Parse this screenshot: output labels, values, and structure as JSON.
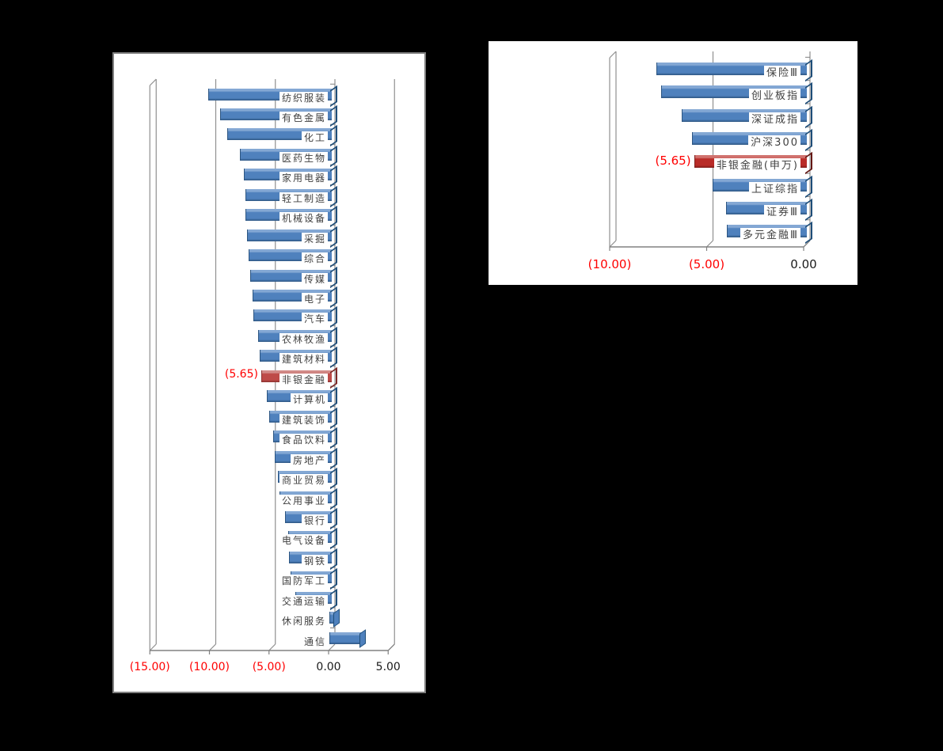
{
  "style": {
    "background": "#000000",
    "panel_background": "#ffffff",
    "panel_border": "#7f7f7f",
    "grid_color": "#8f8f8f",
    "axis_line_color": "#808080",
    "category_text_color": "#404040",
    "axis_text_color": "#1a1a1a",
    "negative_text_color": "#ff0000",
    "blue": {
      "main": "#4f81bd",
      "light": "#84a8d4",
      "dark": "#2c5581",
      "edge": "#1f4e79"
    },
    "red_left": {
      "main": "#be4b48",
      "light": "#d28b88",
      "dark": "#8c3230",
      "edge": "#7b2927"
    },
    "red_right": {
      "main": "#b92c28",
      "light": "#d0726e",
      "dark": "#7e1d1a",
      "edge": "#641713"
    }
  },
  "chart_data": [
    {
      "type": "bar",
      "orientation": "horizontal",
      "title": "",
      "xlabel": "",
      "ylabel": "",
      "grid": true,
      "legend": false,
      "xlim": [
        -15,
        5
      ],
      "categories": [
        "纺织服装",
        "有色金属",
        "化工",
        "医药生物",
        "家用电器",
        "轻工制造",
        "机械设备",
        "采掘",
        "综合",
        "传媒",
        "电子",
        "汽车",
        "农林牧渔",
        "建筑材料",
        "非银金融",
        "计算机",
        "建筑装饰",
        "食品饮料",
        "房地产",
        "商业贸易",
        "公用事业",
        "银行",
        "电气设备",
        "钢铁",
        "国防军工",
        "交通运输",
        "休闲服务",
        "通信"
      ],
      "values": [
        -10.1,
        -9.1,
        -8.5,
        -7.45,
        -7.1,
        -7.0,
        -6.95,
        -6.85,
        -6.7,
        -6.55,
        -6.4,
        -6.3,
        -5.9,
        -5.8,
        -5.65,
        -5.2,
        -5.0,
        -4.65,
        -4.5,
        -4.25,
        -4.15,
        -3.65,
        -3.4,
        -3.3,
        -3.2,
        -2.8,
        0.35,
        2.5
      ],
      "highlight_index": 14,
      "highlight_color_key": "red_left",
      "data_labels": {
        "14": "(5.65)"
      },
      "x_ticks": [
        {
          "label": "(15.00)",
          "value": -15
        },
        {
          "label": "(10.00)",
          "value": -10
        },
        {
          "label": "(5.00)",
          "value": -5
        },
        {
          "label": "0.00",
          "value": 0
        },
        {
          "label": "5.00",
          "value": 5
        }
      ]
    },
    {
      "type": "bar",
      "orientation": "horizontal",
      "title": "",
      "xlabel": "",
      "ylabel": "",
      "grid": true,
      "legend": false,
      "xlim": [
        -10,
        0
      ],
      "categories": [
        "保险Ⅲ",
        "创业板指",
        "深证成指",
        "沪深300",
        "非银金融(申万)",
        "上证综指",
        "证券Ⅲ",
        "多元金融Ⅲ"
      ],
      "values": [
        -7.6,
        -7.35,
        -6.3,
        -5.75,
        -5.65,
        -4.7,
        -4.0,
        -3.95
      ],
      "highlight_index": 4,
      "highlight_color_key": "red_right",
      "data_labels": {
        "4": "(5.65)"
      },
      "x_ticks": [
        {
          "label": "(10.00)",
          "value": -10
        },
        {
          "label": "(5.00)",
          "value": -5
        },
        {
          "label": "0.00",
          "value": 0
        }
      ]
    }
  ]
}
